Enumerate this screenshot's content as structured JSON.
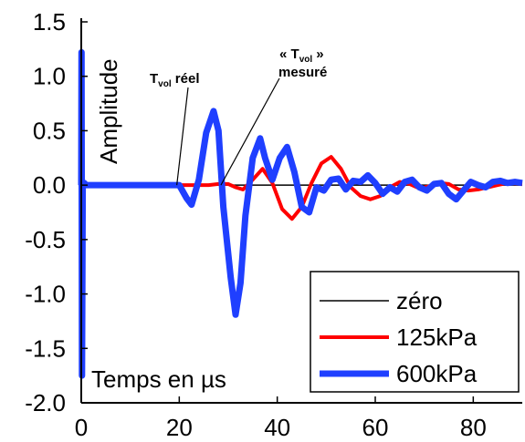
{
  "chart_data": {
    "type": "line",
    "xlabel": "Temps en µs",
    "ylabel": "Amplitude",
    "xlim": [
      0,
      90
    ],
    "ylim": [
      -2.0,
      1.5
    ],
    "x_ticks": [
      0,
      20,
      40,
      60,
      80
    ],
    "y_ticks": [
      -2.0,
      -1.5,
      -1.0,
      -0.5,
      0.0,
      0.5,
      1.0,
      1.5
    ],
    "x_tick_labels": [
      "0",
      "20",
      "40",
      "60",
      "80"
    ],
    "y_tick_labels": [
      "-2.0",
      "-1.5",
      "-1.0",
      "-0.5",
      "0.0",
      "0.5",
      "1.0",
      "1.5"
    ],
    "grid": false,
    "legend_position": "bottom-right",
    "annotations": [
      {
        "main": "T",
        "sub": "vol",
        "suffix": " réel",
        "target": [
          19.5,
          0.0
        ]
      },
      {
        "main": "« T",
        "sub": "vol",
        "suffix": " »",
        "line2": "mesuré",
        "target": [
          28.5,
          0.0
        ]
      }
    ],
    "series": [
      {
        "name": "zéro",
        "color": "#000000",
        "x": [
          0,
          90
        ],
        "y": [
          0,
          0
        ]
      },
      {
        "name": "125kPa",
        "color": "#ff0000",
        "x": [
          0,
          20,
          23,
          26,
          28,
          30,
          31.5,
          33,
          35,
          37,
          39,
          41,
          43,
          45,
          47,
          49,
          51,
          53,
          55,
          57,
          59,
          61,
          63,
          65,
          67,
          69,
          71,
          73,
          75,
          77,
          79,
          81,
          83,
          85,
          87,
          90
        ],
        "y": [
          0,
          0,
          0,
          0,
          0.01,
          0.01,
          -0.02,
          -0.04,
          0.05,
          0.15,
          0.02,
          -0.22,
          -0.31,
          -0.2,
          0.02,
          0.2,
          0.26,
          0.15,
          -0.02,
          -0.1,
          -0.13,
          -0.1,
          -0.02,
          0.03,
          0.01,
          -0.03,
          -0.01,
          0.02,
          0.01,
          -0.04,
          -0.05,
          -0.04,
          -0.02,
          0.0,
          0.02,
          0.01
        ]
      },
      {
        "name": "600kPa",
        "color": "#1f3fff",
        "x": [
          0,
          0.05,
          0.15,
          0.3,
          0.6,
          1,
          2,
          20,
          21.5,
          22.5,
          24,
          25.5,
          27,
          28,
          29,
          30.5,
          31.5,
          32.5,
          33.5,
          35,
          36.5,
          37.5,
          39,
          40.5,
          42,
          43.5,
          45,
          46.5,
          48,
          49.5,
          51,
          52.5,
          54,
          55.5,
          57,
          58.5,
          60,
          61.5,
          63,
          64.5,
          66,
          67.5,
          69,
          70.5,
          72,
          73.5,
          75,
          76.5,
          78,
          79.5,
          81,
          82.5,
          84,
          85.5,
          87,
          88.5,
          90
        ],
        "y": [
          0,
          1.22,
          -1.75,
          0,
          0.02,
          0,
          0,
          0,
          -0.12,
          -0.18,
          0.05,
          0.48,
          0.68,
          0.5,
          -0.2,
          -0.85,
          -1.19,
          -0.9,
          -0.28,
          0.25,
          0.43,
          0.25,
          0.05,
          0.25,
          0.35,
          0.12,
          -0.2,
          -0.25,
          -0.02,
          -0.05,
          0.05,
          0.06,
          -0.04,
          0.04,
          0.03,
          0.09,
          0.02,
          -0.08,
          -0.02,
          -0.06,
          0.03,
          0.05,
          -0.02,
          -0.05,
          0.01,
          0.02,
          -0.08,
          -0.13,
          -0.05,
          0.03,
          0.0,
          -0.02,
          0.03,
          0.04,
          0.02,
          0.03,
          0.02
        ]
      }
    ]
  }
}
